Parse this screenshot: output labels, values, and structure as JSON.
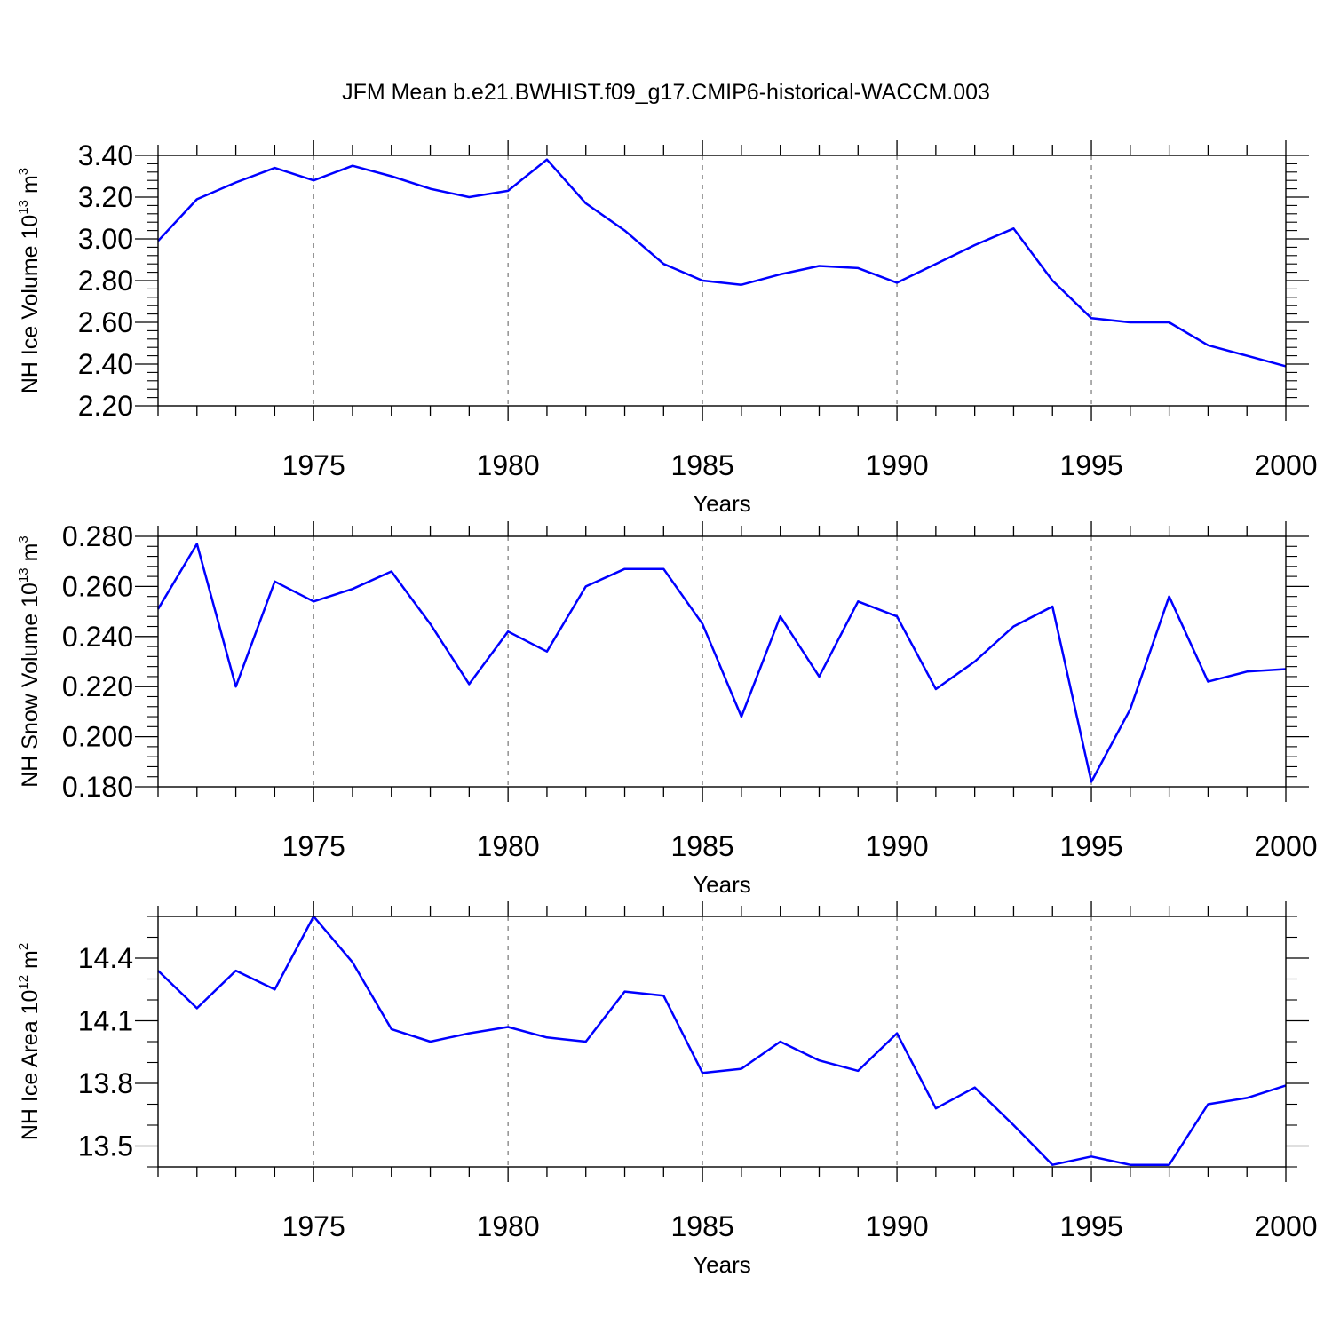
{
  "title": "JFM Mean b.e21.BWHIST.f09_g17.CMIP6-historical-WACCM.003",
  "chart_data": [
    {
      "type": "line",
      "title": "JFM Mean b.e21.BWHIST.f09_g17.CMIP6-historical-WACCM.003",
      "ylabel_main": "NH Ice Volume 10",
      "ylabel_exp": "13",
      "ylabel_unit": " m",
      "ylabel_unit_exp": "3",
      "xlabel": "Years",
      "xlim": [
        1971,
        2000
      ],
      "ylim": [
        2.2,
        3.4
      ],
      "yticks": [
        "2.20",
        "2.40",
        "2.60",
        "2.80",
        "3.00",
        "3.20",
        "3.40"
      ],
      "yminor_step": 0.04,
      "xticks": [
        "1975",
        "1980",
        "1985",
        "1990",
        "1995",
        "2000"
      ],
      "grid": "vertical dashed at major x ticks",
      "line_color": "#0000ff",
      "x": [
        1971,
        1972,
        1973,
        1974,
        1975,
        1976,
        1977,
        1978,
        1979,
        1980,
        1981,
        1982,
        1983,
        1984,
        1985,
        1986,
        1987,
        1988,
        1989,
        1990,
        1991,
        1992,
        1993,
        1994,
        1995,
        1996,
        1997,
        1998,
        1999,
        2000
      ],
      "values": [
        2.99,
        3.19,
        3.27,
        3.34,
        3.28,
        3.35,
        3.3,
        3.24,
        3.2,
        3.23,
        3.38,
        3.17,
        3.04,
        2.88,
        2.8,
        2.78,
        2.83,
        2.87,
        2.86,
        2.79,
        2.88,
        2.97,
        3.05,
        2.8,
        2.62,
        2.6,
        2.6,
        2.49,
        2.44,
        2.39
      ]
    },
    {
      "type": "line",
      "ylabel_main": "NH Snow Volume 10",
      "ylabel_exp": "13",
      "ylabel_unit": " m",
      "ylabel_unit_exp": "3",
      "xlabel": "Years",
      "xlim": [
        1971,
        2000
      ],
      "ylim": [
        0.18,
        0.28
      ],
      "yticks": [
        "0.180",
        "0.200",
        "0.220",
        "0.240",
        "0.260",
        "0.280"
      ],
      "yminor_step": 0.004,
      "xticks": [
        "1975",
        "1980",
        "1985",
        "1990",
        "1995",
        "2000"
      ],
      "grid": "vertical dashed at major x ticks",
      "line_color": "#0000ff",
      "x": [
        1971,
        1972,
        1973,
        1974,
        1975,
        1976,
        1977,
        1978,
        1979,
        1980,
        1981,
        1982,
        1983,
        1984,
        1985,
        1986,
        1987,
        1988,
        1989,
        1990,
        1991,
        1992,
        1993,
        1994,
        1995,
        1996,
        1997,
        1998,
        1999,
        2000
      ],
      "values": [
        0.251,
        0.277,
        0.22,
        0.262,
        0.254,
        0.259,
        0.266,
        0.245,
        0.221,
        0.242,
        0.234,
        0.26,
        0.267,
        0.267,
        0.245,
        0.208,
        0.248,
        0.224,
        0.254,
        0.248,
        0.219,
        0.23,
        0.244,
        0.252,
        0.182,
        0.211,
        0.256,
        0.222,
        0.226,
        0.227
      ]
    },
    {
      "type": "line",
      "ylabel_main": "NH Ice Area 10",
      "ylabel_exp": "12",
      "ylabel_unit": " m",
      "ylabel_unit_exp": "2",
      "xlabel": "Years",
      "xlim": [
        1971,
        2000
      ],
      "ylim": [
        13.4,
        14.6
      ],
      "yticks": [
        "13.5",
        "13.8",
        "14.1",
        "14.4"
      ],
      "ytick_values": [
        13.5,
        13.8,
        14.1,
        14.4
      ],
      "yminor_step": 0.1,
      "xticks": [
        "1975",
        "1980",
        "1985",
        "1990",
        "1995",
        "2000"
      ],
      "grid": "vertical dashed at major x ticks",
      "line_color": "#0000ff",
      "x": [
        1971,
        1972,
        1973,
        1974,
        1975,
        1976,
        1977,
        1978,
        1979,
        1980,
        1981,
        1982,
        1983,
        1984,
        1985,
        1986,
        1987,
        1988,
        1989,
        1990,
        1991,
        1992,
        1993,
        1994,
        1995,
        1996,
        1997,
        1998,
        1999,
        2000
      ],
      "values": [
        14.34,
        14.16,
        14.34,
        14.25,
        14.6,
        14.38,
        14.06,
        14.0,
        14.04,
        14.07,
        14.02,
        14.0,
        14.24,
        14.22,
        13.85,
        13.87,
        14.0,
        13.91,
        13.86,
        14.04,
        13.68,
        13.78,
        13.6,
        13.41,
        13.45,
        13.41,
        13.41,
        13.7,
        13.73,
        13.79
      ]
    }
  ]
}
